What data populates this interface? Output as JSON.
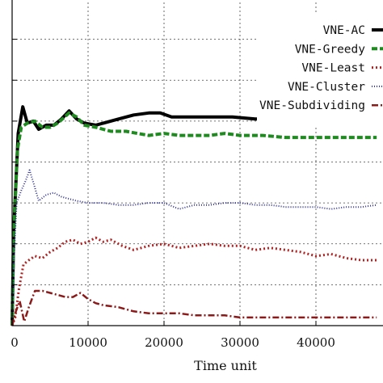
{
  "chart_data": {
    "type": "line",
    "xlabel": "Time unit",
    "ylabel": "",
    "title": "",
    "xlim": [
      0,
      50000
    ],
    "ylim": [
      0,
      8
    ],
    "x_ticks": [
      0,
      10000,
      20000,
      30000,
      40000
    ],
    "x_tick_labels": [
      "0",
      "10000",
      "20000",
      "30000",
      "40000"
    ],
    "y_ticks": [
      0,
      1,
      2,
      3,
      4,
      5,
      6,
      7
    ],
    "grid": true,
    "legend_position": "top-right",
    "series": [
      {
        "name": "VNE-AC",
        "color": "#000000",
        "dash": "solid",
        "width": 4,
        "points": [
          [
            0,
            0
          ],
          [
            200,
            2.3
          ],
          [
            800,
            4.7
          ],
          [
            1400,
            5.35
          ],
          [
            2000,
            4.95
          ],
          [
            2800,
            5.0
          ],
          [
            3500,
            4.8
          ],
          [
            4500,
            4.9
          ],
          [
            5500,
            4.9
          ],
          [
            6500,
            5.05
          ],
          [
            7500,
            5.25
          ],
          [
            8500,
            5.05
          ],
          [
            9500,
            4.95
          ],
          [
            11000,
            4.9
          ],
          [
            12000,
            4.95
          ],
          [
            14000,
            5.05
          ],
          [
            16000,
            5.15
          ],
          [
            18000,
            5.2
          ],
          [
            19500,
            5.2
          ],
          [
            21000,
            5.1
          ],
          [
            23000,
            5.1
          ],
          [
            26000,
            5.1
          ],
          [
            29000,
            5.1
          ],
          [
            32000,
            5.05
          ],
          [
            35000,
            5.05
          ],
          [
            38000,
            5.1
          ],
          [
            41000,
            5.1
          ],
          [
            44000,
            5.1
          ],
          [
            46000,
            5.05
          ],
          [
            48000,
            5.0
          ]
        ]
      },
      {
        "name": "VNE-Greedy",
        "color": "#1f8a1f",
        "dash": "7,3",
        "width": 4,
        "points": [
          [
            0,
            0
          ],
          [
            200,
            2.2
          ],
          [
            700,
            4.3
          ],
          [
            1200,
            4.85
          ],
          [
            2000,
            4.95
          ],
          [
            3000,
            5.0
          ],
          [
            4000,
            4.85
          ],
          [
            5000,
            4.85
          ],
          [
            6000,
            4.95
          ],
          [
            7500,
            5.2
          ],
          [
            8500,
            5.1
          ],
          [
            9500,
            4.9
          ],
          [
            11000,
            4.85
          ],
          [
            13000,
            4.75
          ],
          [
            15000,
            4.75
          ],
          [
            16500,
            4.7
          ],
          [
            18000,
            4.65
          ],
          [
            20000,
            4.7
          ],
          [
            22000,
            4.65
          ],
          [
            24000,
            4.65
          ],
          [
            26000,
            4.65
          ],
          [
            28000,
            4.7
          ],
          [
            30000,
            4.65
          ],
          [
            33000,
            4.65
          ],
          [
            36000,
            4.6
          ],
          [
            40000,
            4.6
          ],
          [
            44000,
            4.6
          ],
          [
            48000,
            4.6
          ]
        ]
      },
      {
        "name": "VNE-Least",
        "color": "#b22222",
        "dash": "2,3",
        "width": 3,
        "points": [
          [
            0,
            0
          ],
          [
            400,
            0.2
          ],
          [
            900,
            0.9
          ],
          [
            1500,
            1.5
          ],
          [
            2200,
            1.6
          ],
          [
            3000,
            1.7
          ],
          [
            4000,
            1.65
          ],
          [
            5000,
            1.8
          ],
          [
            6000,
            1.9
          ],
          [
            7000,
            2.05
          ],
          [
            8000,
            2.1
          ],
          [
            9000,
            2.0
          ],
          [
            10000,
            2.05
          ],
          [
            11000,
            2.15
          ],
          [
            12000,
            2.05
          ],
          [
            13000,
            2.1
          ],
          [
            14500,
            1.95
          ],
          [
            16000,
            1.85
          ],
          [
            18000,
            1.95
          ],
          [
            20000,
            2.0
          ],
          [
            22000,
            1.9
          ],
          [
            24000,
            1.95
          ],
          [
            26000,
            2.0
          ],
          [
            28000,
            1.95
          ],
          [
            30000,
            1.95
          ],
          [
            32000,
            1.85
          ],
          [
            34000,
            1.9
          ],
          [
            36000,
            1.85
          ],
          [
            38000,
            1.8
          ],
          [
            40000,
            1.7
          ],
          [
            42000,
            1.75
          ],
          [
            44000,
            1.65
          ],
          [
            46000,
            1.6
          ],
          [
            48000,
            1.6
          ]
        ]
      },
      {
        "name": "VNE-Cluster",
        "color": "#2e3192",
        "dash": "1,2",
        "width": 2,
        "points": [
          [
            0,
            0
          ],
          [
            200,
            1.5
          ],
          [
            600,
            3.0
          ],
          [
            1200,
            3.3
          ],
          [
            1800,
            3.55
          ],
          [
            2300,
            3.8
          ],
          [
            2800,
            3.5
          ],
          [
            3500,
            3.05
          ],
          [
            4500,
            3.2
          ],
          [
            5500,
            3.25
          ],
          [
            6500,
            3.15
          ],
          [
            7500,
            3.1
          ],
          [
            8500,
            3.05
          ],
          [
            10000,
            3.0
          ],
          [
            12000,
            3.0
          ],
          [
            14000,
            2.95
          ],
          [
            16000,
            2.95
          ],
          [
            18000,
            3.0
          ],
          [
            20000,
            3.0
          ],
          [
            22000,
            2.85
          ],
          [
            24000,
            2.95
          ],
          [
            26000,
            2.95
          ],
          [
            28000,
            3.0
          ],
          [
            30000,
            3.0
          ],
          [
            32000,
            2.95
          ],
          [
            34000,
            2.95
          ],
          [
            36000,
            2.9
          ],
          [
            38000,
            2.9
          ],
          [
            40000,
            2.9
          ],
          [
            42000,
            2.85
          ],
          [
            44000,
            2.9
          ],
          [
            46000,
            2.9
          ],
          [
            48000,
            2.95
          ]
        ]
      },
      {
        "name": "VNE-Subdividing",
        "color": "#8b1a1a",
        "dash": "8,3,2,3",
        "width": 2.5,
        "points": [
          [
            0,
            0
          ],
          [
            500,
            0.35
          ],
          [
            1000,
            0.6
          ],
          [
            1600,
            0.1
          ],
          [
            2200,
            0.45
          ],
          [
            3000,
            0.85
          ],
          [
            4000,
            0.85
          ],
          [
            5000,
            0.8
          ],
          [
            6000,
            0.75
          ],
          [
            7000,
            0.7
          ],
          [
            8000,
            0.7
          ],
          [
            9000,
            0.8
          ],
          [
            10000,
            0.65
          ],
          [
            11000,
            0.55
          ],
          [
            12000,
            0.5
          ],
          [
            14000,
            0.45
          ],
          [
            16000,
            0.35
          ],
          [
            18000,
            0.3
          ],
          [
            20000,
            0.3
          ],
          [
            22000,
            0.3
          ],
          [
            24000,
            0.25
          ],
          [
            26000,
            0.25
          ],
          [
            28000,
            0.25
          ],
          [
            30000,
            0.2
          ],
          [
            34000,
            0.2
          ],
          [
            38000,
            0.2
          ],
          [
            42000,
            0.2
          ],
          [
            46000,
            0.2
          ],
          [
            48000,
            0.2
          ]
        ]
      }
    ]
  }
}
